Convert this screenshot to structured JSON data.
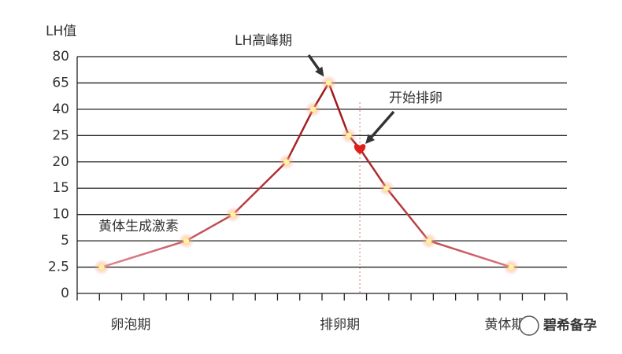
{
  "chart_data": {
    "type": "line",
    "y_label": "LH值",
    "series_label": "黄体生成激素",
    "x": [
      1.1,
      4.9,
      7.0,
      9.4,
      10.6,
      11.3,
      12.2,
      12.7,
      13.9,
      15.8,
      19.5
    ],
    "values": [
      2.5,
      5,
      10,
      20,
      40,
      65,
      25,
      22.5,
      15,
      5,
      2.5
    ],
    "xlim": [
      0,
      22
    ],
    "xticks": [
      0,
      1,
      2,
      3,
      4,
      5,
      6,
      7,
      8,
      9,
      10,
      11,
      12,
      13,
      14,
      15,
      16,
      17,
      18,
      19,
      20,
      21,
      22
    ],
    "ylim": [
      0,
      80
    ],
    "yticks": [
      0,
      2.5,
      5,
      10,
      15,
      20,
      25,
      40,
      65,
      80
    ],
    "y_scale": "tick-indexed",
    "grid": true,
    "line_color_edge": "#ea93a2",
    "line_color_peak": "#9e1414",
    "marker_color": "#fff2a0",
    "categories": [
      "卵泡期",
      "排卵期",
      "黄体期"
    ],
    "category_x": [
      2.4,
      11.8,
      19.2
    ],
    "annotations": {
      "peak": "LH高峰期",
      "ovulation": "开始排卵",
      "peak_index": 5,
      "ovulation_index": 7,
      "ovulation_color": "#e0201b"
    },
    "watermark": "碧希备孕"
  }
}
